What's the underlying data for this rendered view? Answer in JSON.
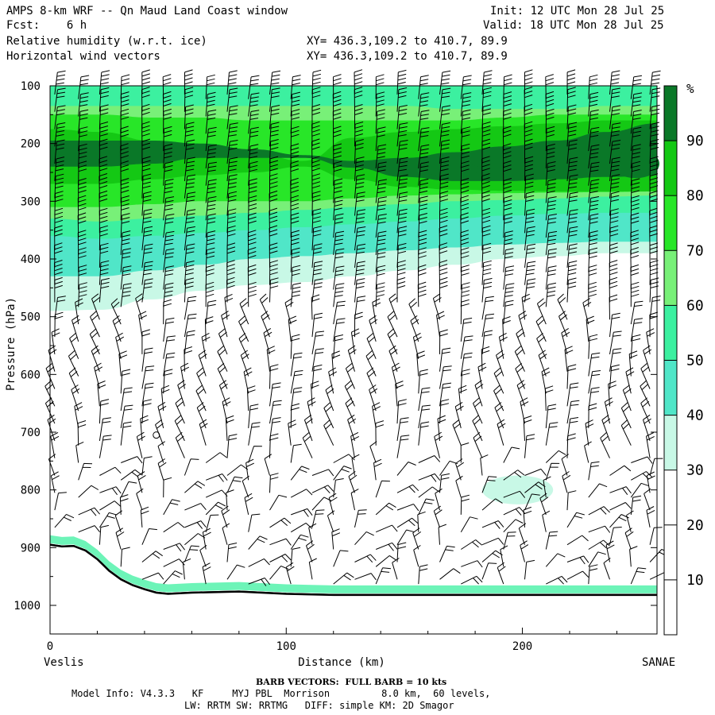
{
  "header": {
    "title": "AMPS 8-km WRF -- Qn Maud Land Coast window",
    "fcst_label": "Fcst:",
    "fcst_value": "6 h",
    "init_label": "Init:",
    "init_value": "12 UTC Mon 28 Jul 25",
    "valid_label": "Valid:",
    "valid_value": "18 UTC Mon 28 Jul 25",
    "field1": "Relative humidity (w.r.t. ice)",
    "field2": "Horizontal wind vectors",
    "xy1": "XY= 436.3,109.2 to 410.7, 89.9",
    "xy2": "XY= 436.3,109.2 to 410.7, 89.9"
  },
  "footer": {
    "barb_note": "BARB VECTORS:  FULL BARB = 10 kts",
    "model_info_1": "Model Info: V4.3.3   KF     MYJ PBL  Morrison         8.0 km,  60 levels,",
    "model_info_2": "LW: RRTM SW: RRTMG   DIFF: simple KM: 2D Smagor"
  },
  "chart_data": {
    "type": "heatmap",
    "xlabel": "Distance (km)",
    "ylabel": "Pressure (hPa)",
    "x_left_label": "Veslis",
    "x_right_label": "SANAE",
    "xlim": [
      0,
      257
    ],
    "ylim": [
      1050,
      100
    ],
    "x_ticks": [
      0,
      100,
      200
    ],
    "y_ticks": [
      100,
      200,
      300,
      400,
      500,
      600,
      700,
      800,
      900,
      1000
    ],
    "colorbar": {
      "unit": "%",
      "levels": [
        10,
        20,
        30,
        40,
        50,
        60,
        70,
        80,
        90
      ],
      "colors": [
        "#ffffff",
        "#ffffff",
        "#ffffff",
        "#c8f8e6",
        "#50e6c8",
        "#3cf0a0",
        "#78f078",
        "#28e628",
        "#14c814",
        "#0a7828"
      ]
    },
    "rh_layers": [
      {
        "level": 30,
        "top_p": [
          100,
          100,
          100,
          100,
          100,
          100,
          100,
          100,
          100,
          100,
          100,
          100,
          100
        ],
        "bottom_p": [
          490,
          488,
          470,
          455,
          445,
          440,
          430,
          420,
          410,
          400,
          395,
          390,
          390
        ]
      },
      {
        "level": 40,
        "top_p": [
          100,
          100,
          100,
          100,
          100,
          100,
          100,
          100,
          100,
          100,
          100,
          100,
          100
        ],
        "bottom_p": [
          430,
          430,
          420,
          410,
          400,
          395,
          390,
          385,
          380,
          375,
          372,
          370,
          370
        ]
      },
      {
        "level": 50,
        "top_p": [
          100,
          100,
          100,
          100,
          100,
          100,
          100,
          100,
          100,
          100,
          100,
          100,
          100
        ],
        "bottom_p": [
          360,
          365,
          360,
          355,
          350,
          345,
          340,
          335,
          330,
          325,
          322,
          320,
          320
        ]
      },
      {
        "level": 60,
        "top_p": [
          135,
          135,
          135,
          135,
          135,
          135,
          135,
          135,
          140,
          140,
          140,
          135,
          135
        ],
        "bottom_p": [
          330,
          335,
          330,
          325,
          320,
          315,
          310,
          305,
          300,
          298,
          295,
          292,
          290
        ]
      },
      {
        "level": 70,
        "top_p": [
          150,
          150,
          155,
          155,
          160,
          160,
          160,
          160,
          160,
          155,
          150,
          150,
          150
        ],
        "bottom_p": [
          310,
          310,
          305,
          300,
          300,
          300,
          295,
          290,
          288,
          286,
          285,
          284,
          283
        ]
      },
      {
        "level": 80,
        "top_p": [
          175,
          180,
          195,
          200,
          215,
          230,
          190,
          180,
          175,
          170,
          165,
          160,
          160
        ],
        "bottom_p": [
          270,
          270,
          262,
          255,
          250,
          240,
          262,
          275,
          280,
          282,
          283,
          283,
          283
        ]
      },
      {
        "level": 90,
        "top_p": [
          195,
          195,
          195,
          200,
          210,
          220,
          230,
          225,
          215,
          205,
          195,
          180,
          165
        ],
        "bottom_p": [
          240,
          240,
          235,
          225,
          225,
          225,
          242,
          258,
          265,
          265,
          262,
          258,
          255
        ]
      }
    ],
    "rh_patches": [
      {
        "level": 90,
        "center_x": 170,
        "center_p": 245,
        "half_width_km": 12,
        "half_height_hpa": 12
      },
      {
        "level": 90,
        "center_x": 248,
        "center_p": 235,
        "half_width_km": 10,
        "half_height_hpa": 25
      },
      {
        "level": 30,
        "center_x": 198,
        "center_p": 800,
        "half_width_km": 15,
        "half_height_hpa": 25
      }
    ],
    "terrain_p": {
      "x": [
        0,
        5,
        10,
        15,
        20,
        25,
        30,
        35,
        40,
        45,
        50,
        60,
        80,
        100,
        120,
        150,
        200,
        257
      ],
      "p": [
        895,
        898,
        897,
        905,
        920,
        940,
        955,
        965,
        972,
        978,
        980,
        978,
        976,
        980,
        982,
        982,
        982,
        982
      ]
    },
    "barbs": {
      "x_columns": [
        2,
        12,
        21,
        30,
        39,
        48,
        57,
        66,
        75,
        84,
        93,
        102,
        111,
        120,
        129,
        138,
        147,
        156,
        165,
        174,
        183,
        192,
        201,
        210,
        219,
        228,
        237,
        246,
        254
      ],
      "pressure_step": 30,
      "barb_unit": "kts",
      "calm_marker": {
        "x": 45,
        "p": 705
      }
    }
  }
}
